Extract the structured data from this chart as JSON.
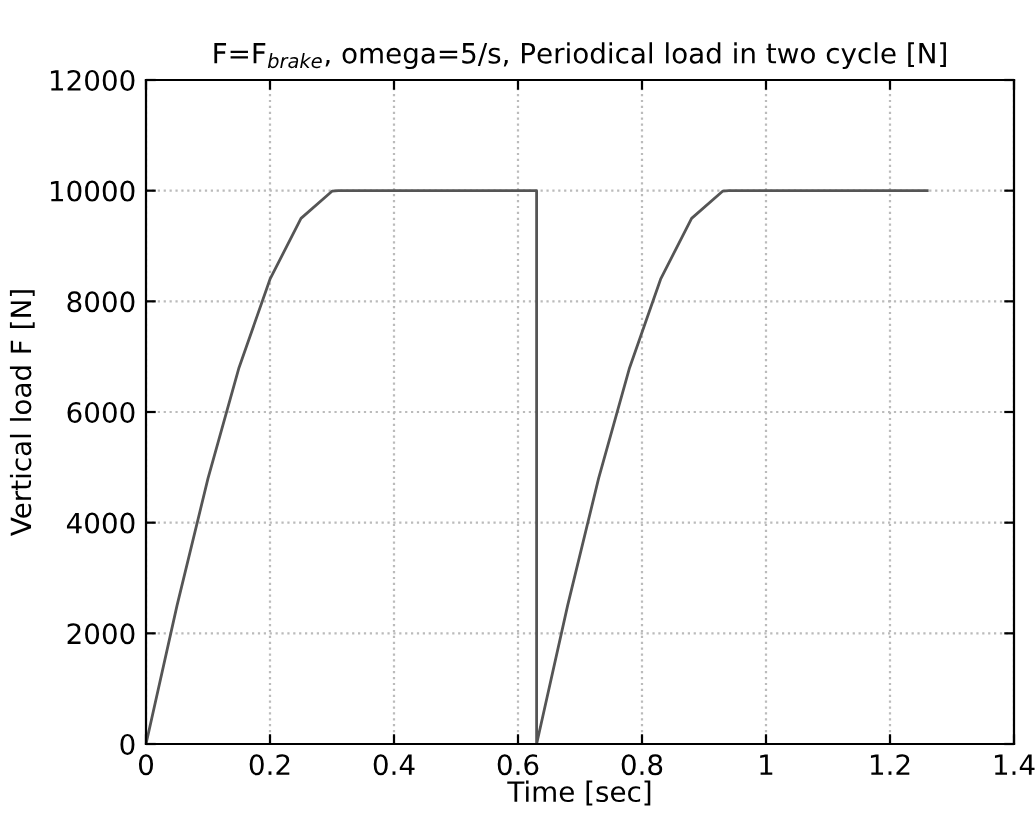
{
  "chart_data": {
    "type": "line",
    "title": "F=F$_{brake}$, omega=5/s, Periodical load in two cycle [N]",
    "xlabel": "Time [sec]",
    "ylabel": "Vertical load F [N]",
    "x": [
      0,
      0.05,
      0.1,
      0.15,
      0.2,
      0.25,
      0.3,
      0.31,
      0.63,
      0.63,
      0.68,
      0.73,
      0.78,
      0.83,
      0.88,
      0.93,
      0.94,
      1.26
    ],
    "series": [
      {
        "color": "#555555",
        "values": [
          0,
          2500,
          4800,
          6800,
          8400,
          9500,
          9990,
          10000,
          10000,
          0,
          2500,
          4800,
          6800,
          8400,
          9500,
          9990,
          10000,
          10000
        ]
      }
    ],
    "xlim": [
      0,
      1.4
    ],
    "xticks": [
      0,
      0.2,
      0.4,
      0.6,
      0.8,
      1,
      1.2,
      1.4
    ],
    "ylim": [
      0,
      12000
    ],
    "yticks": [
      0,
      2000,
      4000,
      6000,
      8000,
      10000,
      12000
    ],
    "grid": true,
    "marker": "none",
    "line_style": "solid"
  }
}
